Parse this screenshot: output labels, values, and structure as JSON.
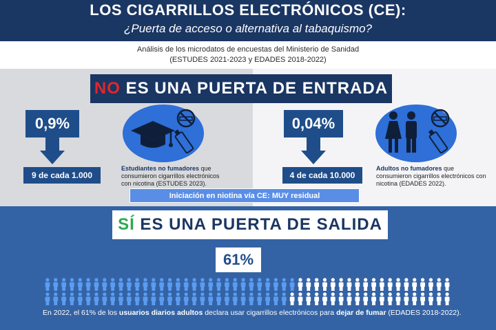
{
  "header": {
    "title": "LOS CIGARRILLOS ELECTRÓNICOS (CE):",
    "subtitle": "¿Puerta de acceso o alternativa al tabaquismo?"
  },
  "analysis": {
    "line1": "Análisis de los microdatos de encuestas del Ministerio de Sanidad",
    "line2": "(ESTUDES 2021-2023 y EDADES 2018-2022)"
  },
  "entrada": {
    "highlight": "NO",
    "rest": " ES UNA PUERTA DE ENTRADA",
    "left": {
      "stat": "0,9%",
      "ratio": "9 de cada 1.000",
      "desc_bold": "Estudiantes no fumadores",
      "desc_rest": " que consumieron cigarrillos electrónicos con nicotina (ESTUDES 2023)."
    },
    "right": {
      "stat": "0,04%",
      "ratio": "4 de cada 10.000",
      "desc_bold": "Adultos no fumadores",
      "desc_rest": " que consumieron cigarrillos electrónicos con nicotina (EDADES 2022)."
    },
    "residual": "Iniciación en niotina vía CE: MUY residual"
  },
  "salida": {
    "highlight": "SÍ",
    "rest": " ES UNA PUERTA DE SALIDA",
    "stat": "61%",
    "stat_fraction": 0.61,
    "text_pre": "En 2022, el 61% de los ",
    "text_bold1": "usuarios diarios adultos",
    "text_mid": " declara usar cigarrillos electrónicos para ",
    "text_bold2": "dejar de fumar",
    "text_post": " (EDADES 2018-2022)."
  },
  "colors": {
    "navy": "#1a3663",
    "accent_blue": "#1f4d8a",
    "circle_blue": "#2e6fd8",
    "section_blue": "#3463a5",
    "red": "#e3262a",
    "green": "#2fa84f",
    "person_filled": "#5b9cf0",
    "person_empty": "#ffffff"
  },
  "icons": [
    "graduation-cap-icon",
    "no-smoking-icon",
    "e-cigarette-icon",
    "woman-man-icon"
  ]
}
